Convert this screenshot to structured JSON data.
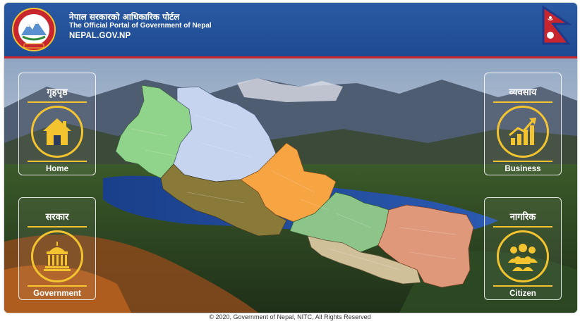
{
  "header": {
    "title_nepali": "नेपाल सरकारको आधिकारिक पोर्टल",
    "title_english": "The Official Portal of Government of Nepal",
    "site_name": "NEPAL.GOV.NP",
    "emblem_icon": "nepal-emblem-icon",
    "flag_icon": "nepal-flag-icon",
    "colors": {
      "header_bg": "#1e4a92",
      "accent_red": "#c8262f",
      "gold": "#f4c430"
    }
  },
  "nav_cards": [
    {
      "nepali": "गृहपृष्ठ",
      "english": "Home",
      "icon": "home-icon"
    },
    {
      "nepali": "सरकार",
      "english": "Government",
      "icon": "government-building-icon"
    },
    {
      "nepali": "व्यवसाय",
      "english": "Business",
      "icon": "business-growth-chart-icon"
    },
    {
      "nepali": "नागरिक",
      "english": "Citizen",
      "icon": "citizen-group-icon"
    }
  ],
  "map": {
    "provinces": [
      {
        "color": "#8fd48a"
      },
      {
        "color": "#c6d4f0"
      },
      {
        "color": "#8a7a3a"
      },
      {
        "color": "#f7a443"
      },
      {
        "color": "#8cc48a"
      },
      {
        "color": "#cfc09a"
      },
      {
        "color": "#e0987a"
      }
    ]
  },
  "footer": {
    "copyright": "© 2020, Government of Nepal, NITC, All Rights Reserved"
  }
}
